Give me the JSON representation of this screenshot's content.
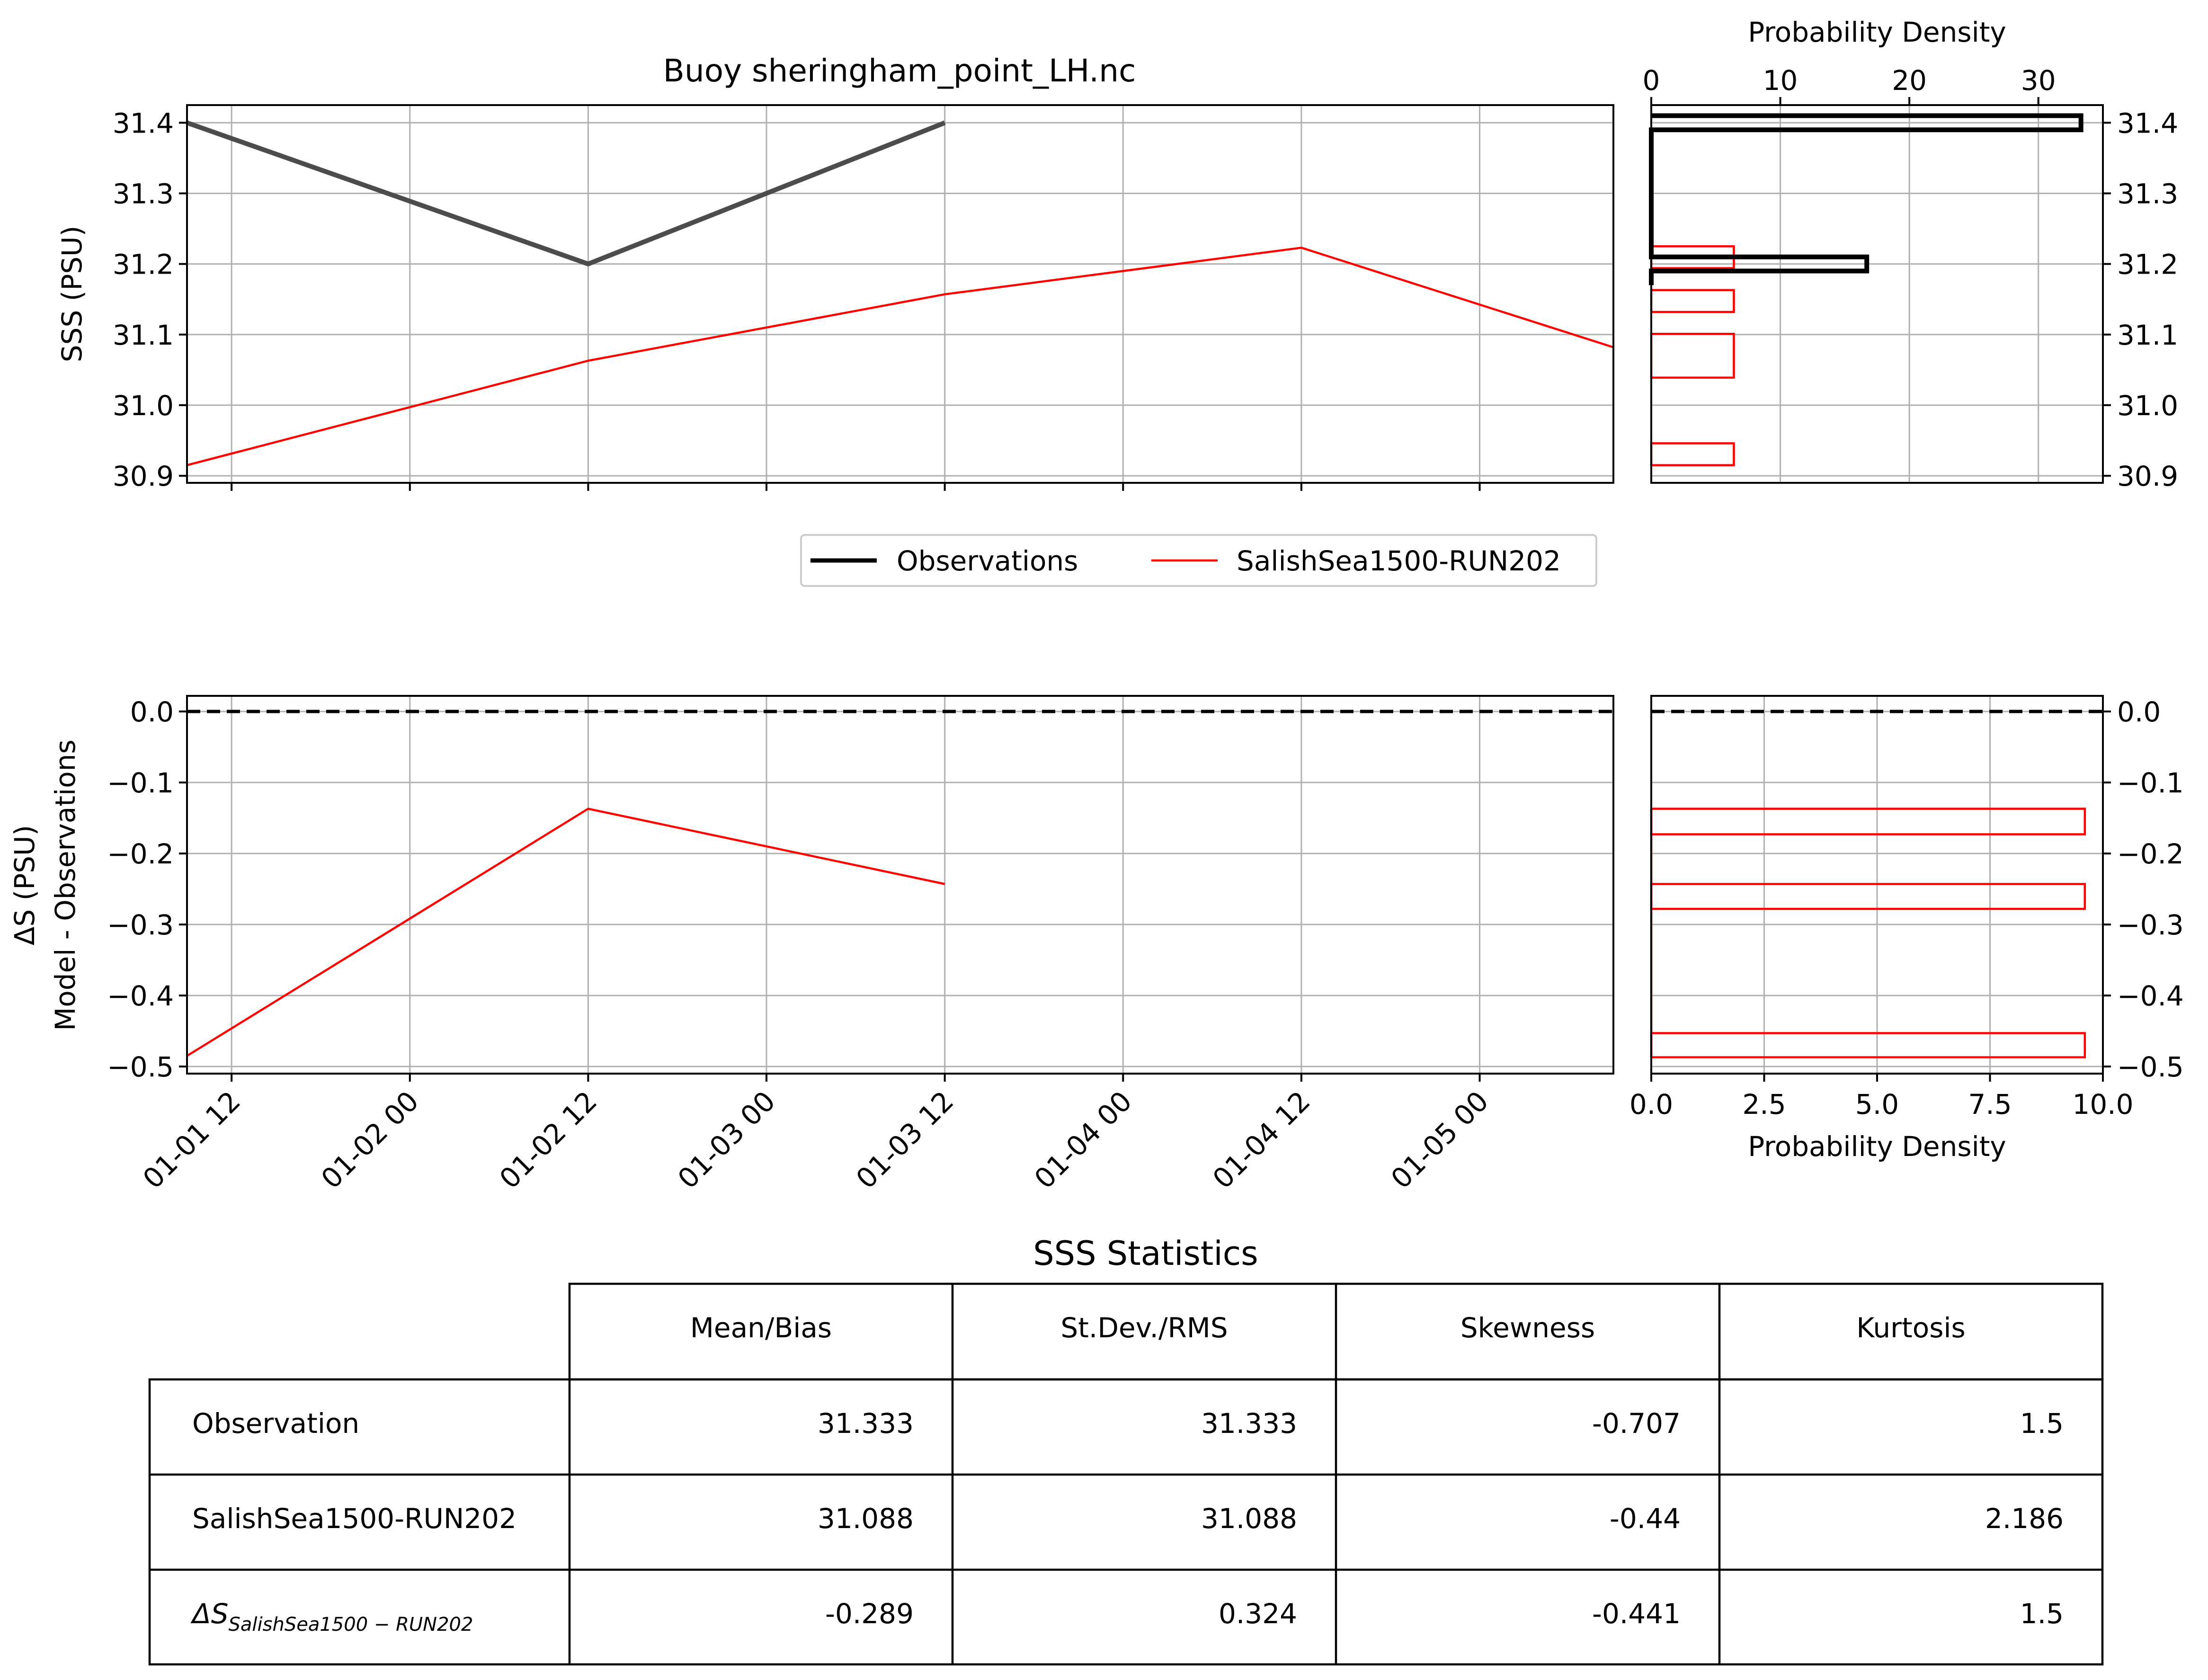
{
  "chart_data": [
    {
      "type": "line",
      "title": "Buoy sheringham_point_LH.nc",
      "ylabel": "SSS (PSU)",
      "xlim": [
        "2017-01-01 09:00",
        "2017-01-05 09:00"
      ],
      "ylim": [
        30.89,
        31.425
      ],
      "yticks": [
        "30.9",
        "31.0",
        "31.1",
        "31.2",
        "31.3",
        "31.4"
      ],
      "grid": true,
      "legend_position": "below",
      "series": [
        {
          "name": "Observations",
          "color": "#4c4c4c",
          "x": [
            "2017-01-01 09:00",
            "2017-01-02 12:00",
            "2017-01-03 12:00"
          ],
          "y": [
            31.4,
            31.2,
            31.4
          ]
        },
        {
          "name": "SalishSea1500-RUN202",
          "color": "#ff0000",
          "x": [
            "2017-01-01 09:00",
            "2017-01-02 12:00",
            "2017-01-03 12:00",
            "2017-01-04 12:00",
            "2017-01-05 09:00"
          ],
          "y": [
            30.915,
            31.063,
            31.157,
            31.223,
            31.082
          ]
        }
      ]
    },
    {
      "type": "histogram",
      "orientation": "horizontal",
      "xlabel": "Probability Density",
      "xlim": [
        0,
        35
      ],
      "xticks": [
        "0",
        "10",
        "20",
        "30"
      ],
      "ylim": [
        30.89,
        31.425
      ],
      "yticks": [
        "30.9",
        "31.0",
        "31.1",
        "31.2",
        "31.3",
        "31.4"
      ],
      "grid": true,
      "series": [
        {
          "name": "Observations",
          "color": "#000000",
          "bins": [
            [
              31.17,
              31.19,
              0
            ],
            [
              31.19,
              31.21,
              16.7
            ],
            [
              31.21,
              31.39,
              0
            ],
            [
              31.39,
              31.41,
              33.3
            ]
          ]
        },
        {
          "name": "SalishSea1500-RUN202",
          "color": "#ff0000",
          "bins": [
            [
              30.915,
              30.946,
              6.4
            ],
            [
              30.946,
              31.039,
              0
            ],
            [
              31.039,
              31.101,
              6.4
            ],
            [
              31.101,
              31.132,
              0
            ],
            [
              31.132,
              31.163,
              6.4
            ],
            [
              31.163,
              31.194,
              0
            ],
            [
              31.194,
              31.225,
              6.4
            ]
          ]
        }
      ]
    },
    {
      "type": "line",
      "ylabel": "ΔS (PSU)",
      "ylabel2": "Model - Observations",
      "xlim": [
        "2017-01-01 09:00",
        "2017-01-05 09:00"
      ],
      "xticks": [
        "01-01 12",
        "01-02 00",
        "01-02 12",
        "01-03 00",
        "01-03 12",
        "01-04 00",
        "01-04 12",
        "01-05 00"
      ],
      "ylim": [
        -0.51,
        0.022
      ],
      "yticks": [
        "−0.5",
        "−0.4",
        "−0.3",
        "−0.2",
        "−0.1",
        "0.0"
      ],
      "grid": true,
      "reference_line": 0,
      "series": [
        {
          "name": "SalishSea1500-RUN202",
          "color": "#ff0000",
          "x": [
            "2017-01-01 09:00",
            "2017-01-02 12:00",
            "2017-01-03 12:00"
          ],
          "y": [
            -0.485,
            -0.137,
            -0.243
          ]
        }
      ]
    },
    {
      "type": "histogram",
      "orientation": "horizontal",
      "xlabel": "Probability Density",
      "xlim": [
        0,
        10
      ],
      "xticks": [
        "0.0",
        "2.5",
        "5.0",
        "7.5",
        "10.0"
      ],
      "ylim": [
        -0.51,
        0.022
      ],
      "yticks": [
        "−0.5",
        "−0.4",
        "−0.3",
        "−0.2",
        "−0.1",
        "0.0"
      ],
      "grid": true,
      "reference_line": 0,
      "series": [
        {
          "name": "SalishSea1500-RUN202",
          "color": "#ff0000",
          "bins": [
            [
              -0.487,
              -0.453,
              9.6
            ],
            [
              -0.453,
              -0.278,
              0
            ],
            [
              -0.278,
              -0.243,
              9.6
            ],
            [
              -0.243,
              -0.173,
              0
            ],
            [
              -0.173,
              -0.137,
              9.6
            ]
          ]
        }
      ]
    },
    {
      "type": "table",
      "title": "SSS Statistics",
      "columns": [
        "",
        "Mean/Bias",
        "St.Dev./RMS",
        "Skewness",
        "Kurtosis"
      ],
      "rows": [
        {
          "label": "Observation",
          "values": [
            "31.333",
            "31.333",
            "-0.707",
            "1.5"
          ]
        },
        {
          "label": "SalishSea1500-RUN202",
          "values": [
            "31.088",
            "31.088",
            "-0.44",
            "2.186"
          ]
        },
        {
          "label": "ΔS",
          "label_sub": "SalishSea1500 − RUN202",
          "values": [
            "-0.289",
            "0.324",
            "-0.441",
            "1.5"
          ]
        }
      ]
    }
  ]
}
